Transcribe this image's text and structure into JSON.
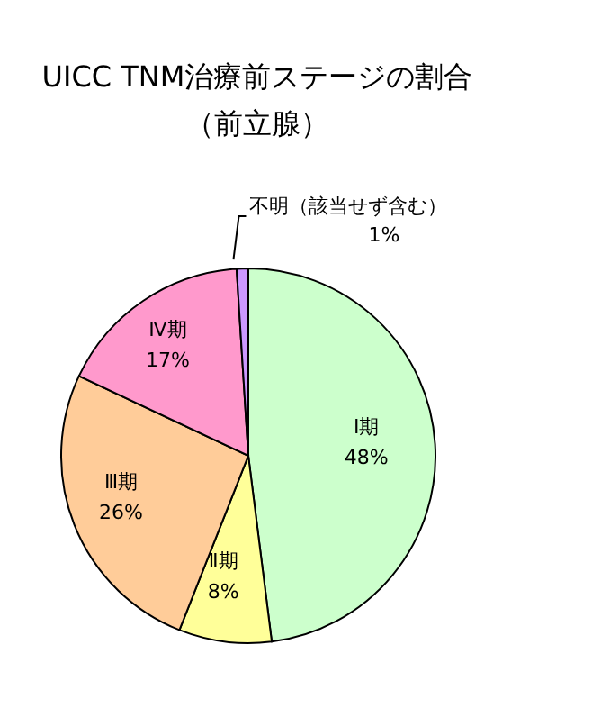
{
  "chart_data": {
    "type": "pie",
    "title": "UICC TNM治療前ステージの割合",
    "subtitle": "（前立腺）",
    "categories": [
      "Ⅰ期",
      "Ⅱ期",
      "Ⅲ期",
      "Ⅳ期",
      "不明（該当せず含む）"
    ],
    "values": [
      48,
      8,
      26,
      17,
      1
    ],
    "value_labels": [
      "48%",
      "8%",
      "26%",
      "17%",
      "1%"
    ],
    "colors": [
      "#ccffcc",
      "#ffff99",
      "#ffcc99",
      "#ff99cc",
      "#cc99ff"
    ],
    "legend": false
  }
}
